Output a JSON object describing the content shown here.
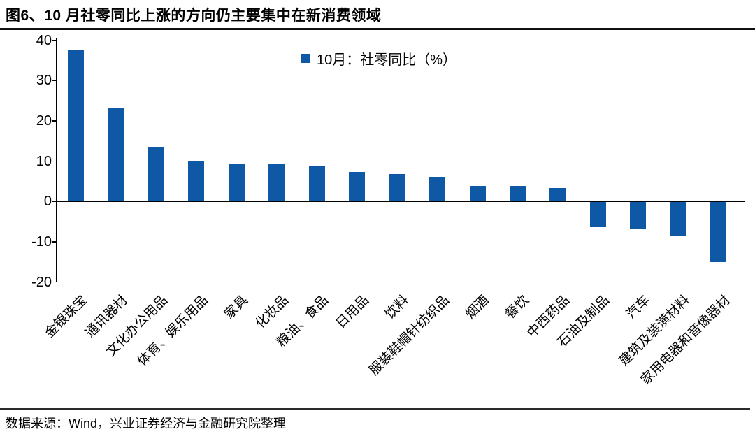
{
  "page": {
    "title": "图6、10 月社零同比上涨的方向仍主要集中在新消费领域",
    "source": "数据来源：Wind，兴业证券经济与金融研究院整理"
  },
  "colors": {
    "bar": "#0E58A6",
    "axis": "#000000",
    "title_rule": "#111111",
    "footer_rule": "#2B2B2B"
  },
  "chart_data": {
    "type": "bar",
    "series_name": "10月：社零同比（%）",
    "legend": {
      "label": "10月：社零同比（%）",
      "position": "top-center",
      "marker_color": "#0E58A6"
    },
    "categories": [
      "金银珠宝",
      "通讯器材",
      "文化办公用品",
      "体育、娱乐用品",
      "家具",
      "化妆品",
      "粮油、食品",
      "日用品",
      "饮料",
      "服装鞋帽针纺织品",
      "烟酒",
      "餐饮",
      "中西药品",
      "石油及制品",
      "汽车",
      "建筑及装潢材料",
      "家用电器和音像器材"
    ],
    "values": [
      37.7,
      23.2,
      13.5,
      10.1,
      9.5,
      9.4,
      8.9,
      7.3,
      6.8,
      6.2,
      3.9,
      3.9,
      3.3,
      -6.2,
      -6.8,
      -8.4,
      -14.9
    ],
    "title": "",
    "xlabel": "",
    "ylabel": "",
    "ylim": [
      -20,
      40
    ],
    "yticks": [
      40,
      30,
      20,
      10,
      0,
      -10,
      -20
    ],
    "grid": false,
    "bar_color": "#0E58A6"
  }
}
